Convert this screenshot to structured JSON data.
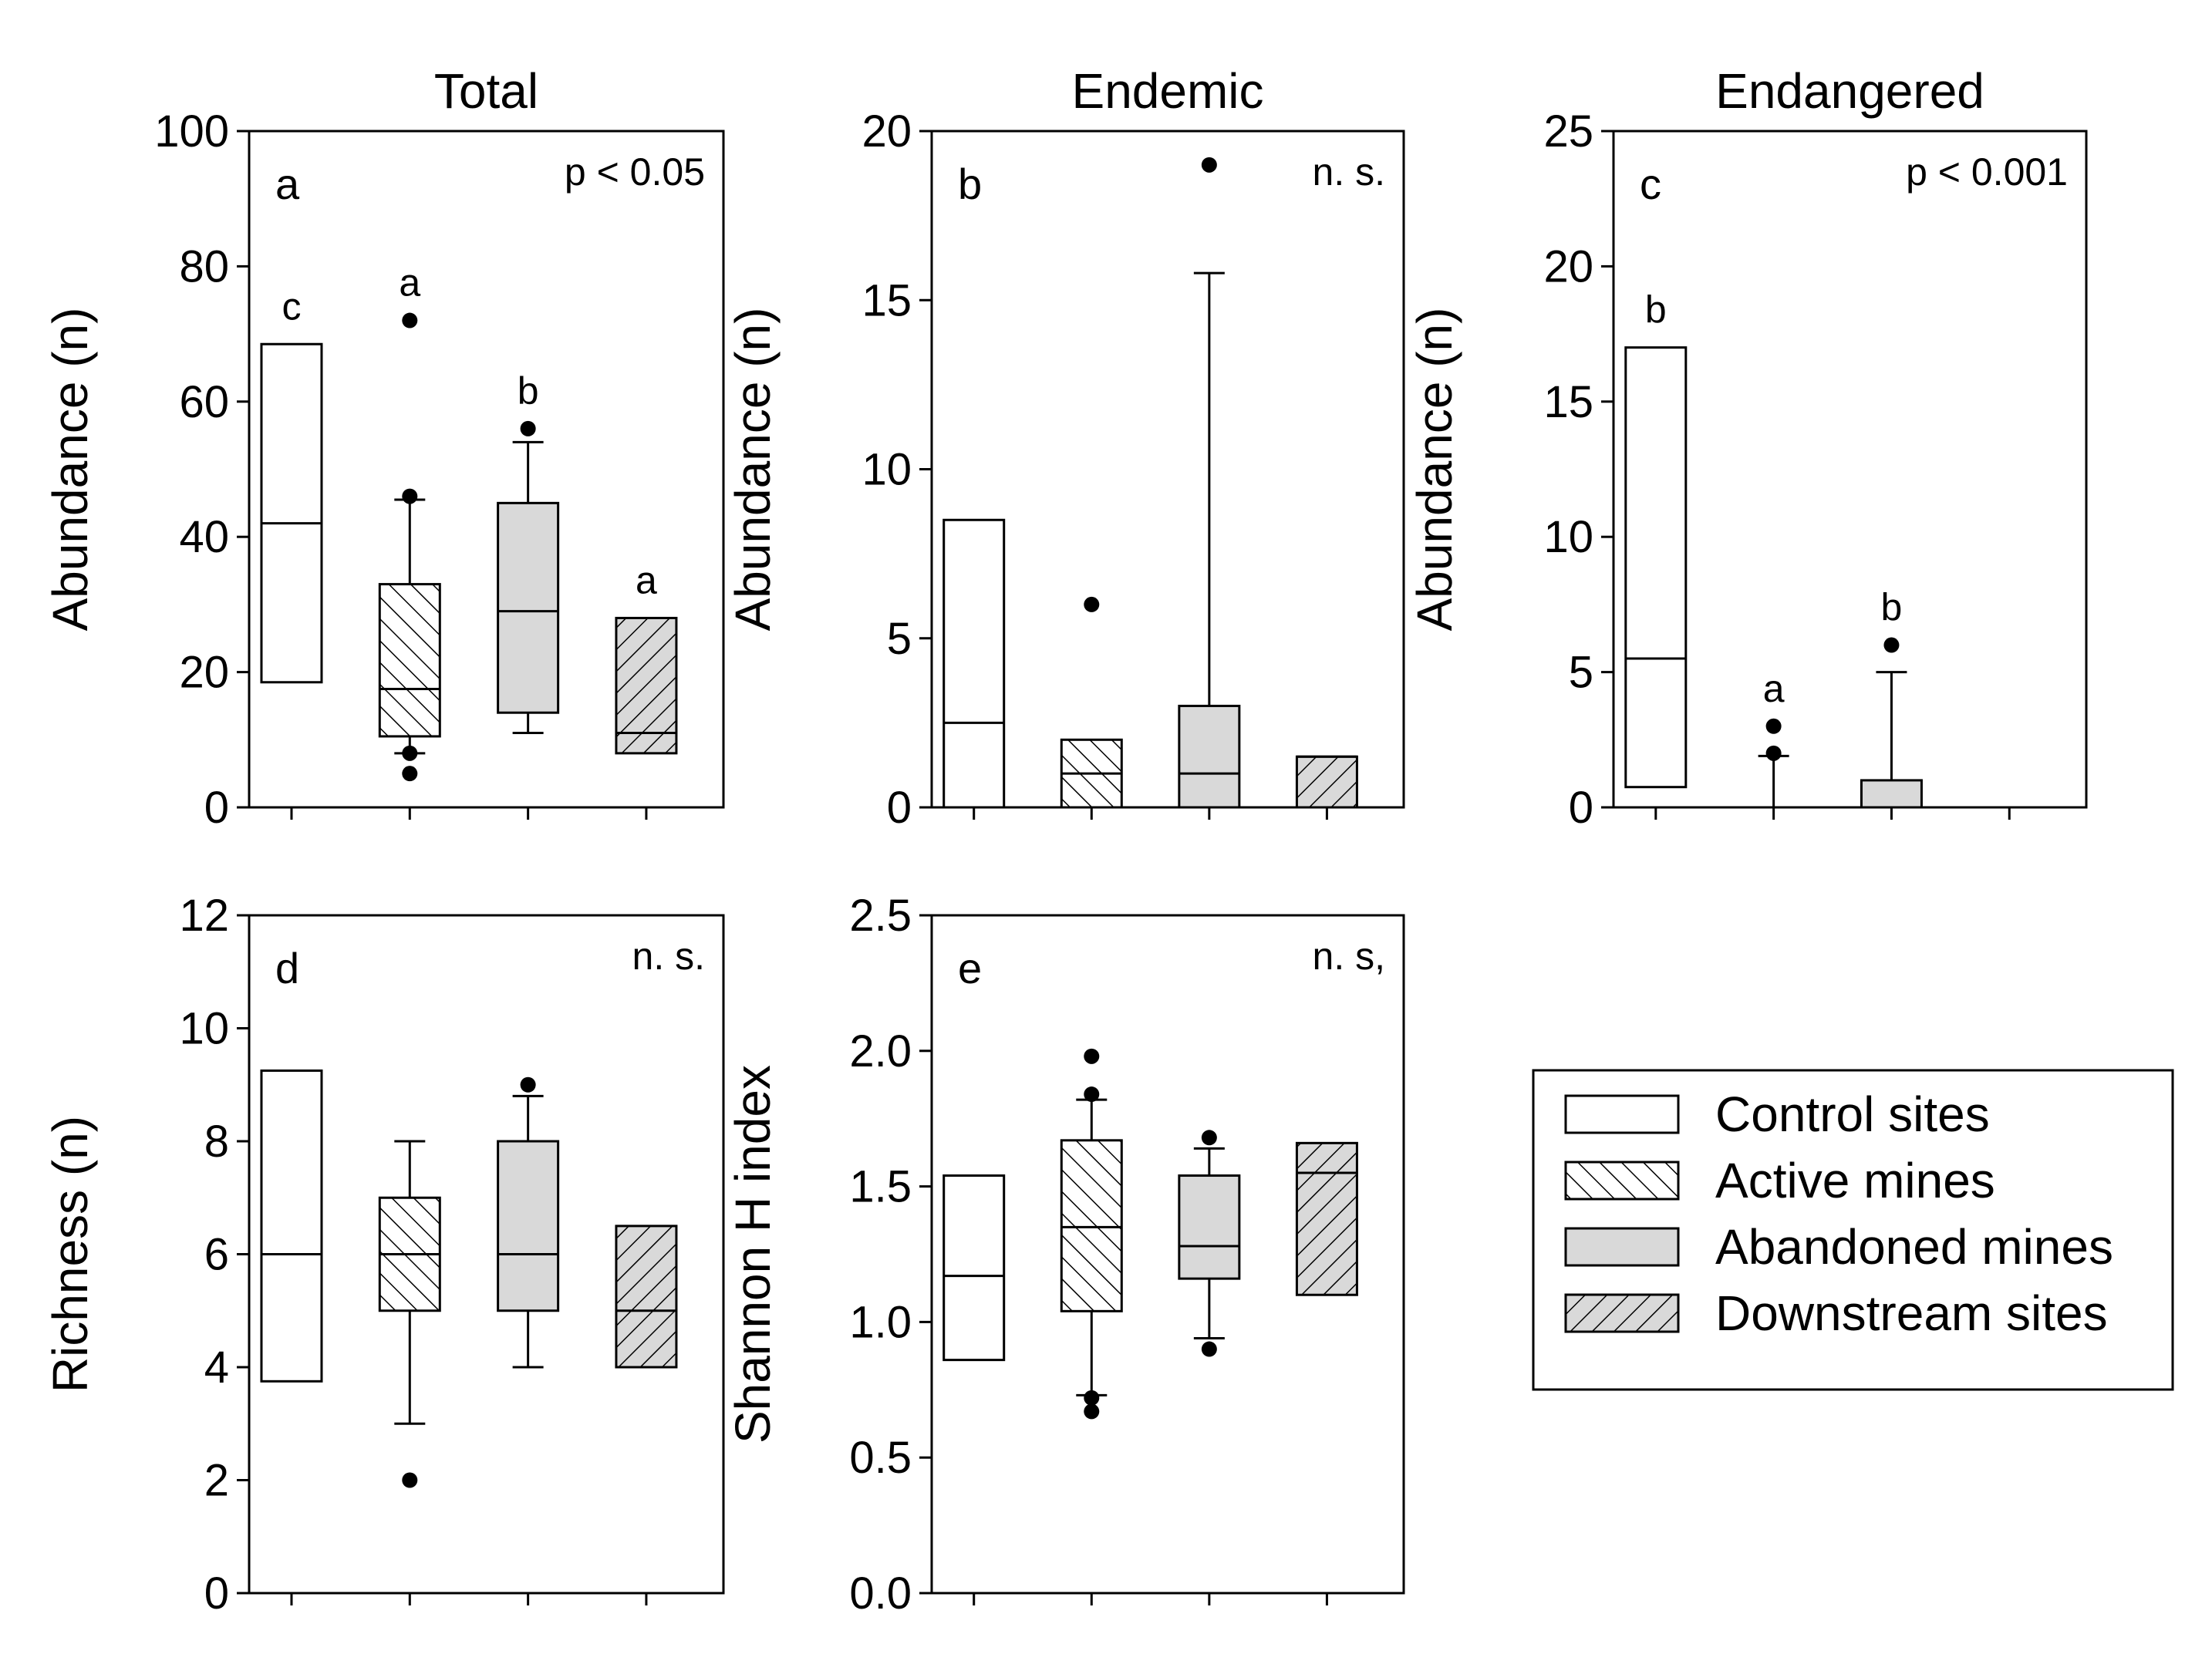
{
  "chart_data": [
    {
      "type": "boxplot",
      "id": "a",
      "title": "Total",
      "panel_letter": "a",
      "significance": "p < 0.05",
      "ylabel": "Abundance (n)",
      "ylim": [
        0,
        100
      ],
      "yticks": [
        0,
        20,
        40,
        60,
        80,
        100
      ],
      "ytick_labels": [
        "0",
        "20",
        "40",
        "60",
        "80",
        "100"
      ],
      "categories": [
        "Control sites",
        "Active mines",
        "Abandoned mines",
        "Downstream sites"
      ],
      "boxes": [
        {
          "group": "Control sites",
          "q1": 18.5,
          "median": 42,
          "q3": 68.5,
          "letter": "c"
        },
        {
          "group": "Active mines",
          "q1": 10.5,
          "median": 17.5,
          "q3": 33,
          "whisker_low": 8,
          "whisker_high": 45.5,
          "outliers": [
            5,
            8,
            46,
            72
          ],
          "letter": "a"
        },
        {
          "group": "Abandoned mines",
          "q1": 14,
          "median": 29,
          "q3": 45,
          "whisker_low": 11,
          "whisker_high": 54,
          "outliers": [
            56
          ],
          "letter": "b"
        },
        {
          "group": "Downstream sites",
          "q1": 8,
          "median": 11,
          "q3": 28,
          "letter": "a"
        }
      ]
    },
    {
      "type": "boxplot",
      "id": "b",
      "title": "Endemic",
      "panel_letter": "b",
      "significance": "n. s.",
      "ylabel": "Abundance (n)",
      "ylim": [
        0,
        20
      ],
      "yticks": [
        0,
        5,
        10,
        15,
        20
      ],
      "ytick_labels": [
        "0",
        "5",
        "10",
        "15",
        "20"
      ],
      "categories": [
        "Control sites",
        "Active mines",
        "Abandoned mines",
        "Downstream sites"
      ],
      "boxes": [
        {
          "group": "Control sites",
          "q1": 0,
          "median": 2.5,
          "q3": 8.5
        },
        {
          "group": "Active mines",
          "q1": 0,
          "median": 1,
          "q3": 2,
          "outliers": [
            6
          ]
        },
        {
          "group": "Abandoned mines",
          "q1": 0,
          "median": 1,
          "q3": 3,
          "whisker_high": 15.8,
          "outliers": [
            19
          ]
        },
        {
          "group": "Downstream sites",
          "q1": 0,
          "median": 1.5,
          "q3": 1.5
        }
      ]
    },
    {
      "type": "boxplot",
      "id": "c",
      "title": "Endangered",
      "panel_letter": "c",
      "significance": "p < 0.001",
      "ylabel": "Abundance (n)",
      "ylim": [
        0,
        25
      ],
      "yticks": [
        0,
        5,
        10,
        15,
        20,
        25
      ],
      "ytick_labels": [
        "0",
        "5",
        "10",
        "15",
        "20",
        "25"
      ],
      "categories": [
        "Control sites",
        "Active mines",
        "Abandoned mines",
        "Downstream sites"
      ],
      "boxes": [
        {
          "group": "Control sites",
          "q1": 0.75,
          "median": 5.5,
          "q3": 17,
          "letter": "b"
        },
        {
          "group": "Active mines",
          "q1": 0,
          "median": 0,
          "q3": 0,
          "whisker_high": 1.9,
          "outliers": [
            2,
            3
          ],
          "letter": "a"
        },
        {
          "group": "Abandoned mines",
          "q1": 0,
          "median": 0,
          "q3": 1,
          "whisker_high": 5,
          "outliers": [
            6
          ],
          "letter": "b"
        },
        {
          "group": "Downstream sites",
          "q1": 0,
          "median": 0,
          "q3": 0
        }
      ]
    },
    {
      "type": "boxplot",
      "id": "d",
      "title": "",
      "panel_letter": "d",
      "significance": "n. s.",
      "ylabel": "Richness (n)",
      "ylim": [
        0,
        12
      ],
      "yticks": [
        0,
        2,
        4,
        6,
        8,
        10,
        12
      ],
      "ytick_labels": [
        "0",
        "2",
        "4",
        "6",
        "8",
        "10",
        "12"
      ],
      "categories": [
        "Control sites",
        "Active mines",
        "Abandoned mines",
        "Downstream sites"
      ],
      "boxes": [
        {
          "group": "Control sites",
          "q1": 3.75,
          "median": 6,
          "q3": 9.25
        },
        {
          "group": "Active mines",
          "q1": 5,
          "median": 6,
          "q3": 7,
          "whisker_low": 3,
          "whisker_high": 8,
          "outliers": [
            2
          ]
        },
        {
          "group": "Abandoned mines",
          "q1": 5,
          "median": 6,
          "q3": 8,
          "whisker_low": 4,
          "whisker_high": 8.8,
          "outliers": [
            9
          ]
        },
        {
          "group": "Downstream sites",
          "q1": 4,
          "median": 5,
          "q3": 6.5
        }
      ]
    },
    {
      "type": "boxplot",
      "id": "e",
      "title": "",
      "panel_letter": "e",
      "significance": "n. s,",
      "ylabel": "Shannon H index",
      "ylim": [
        0,
        2.5
      ],
      "yticks": [
        0,
        0.5,
        1,
        1.5,
        2,
        2.5
      ],
      "ytick_labels": [
        "0.0",
        "0.5",
        "1.0",
        "1.5",
        "2.0",
        "2.5"
      ],
      "categories": [
        "Control sites",
        "Active mines",
        "Abandoned mines",
        "Downstream sites"
      ],
      "boxes": [
        {
          "group": "Control sites",
          "q1": 0.86,
          "median": 1.17,
          "q3": 1.54
        },
        {
          "group": "Active mines",
          "q1": 1.04,
          "median": 1.35,
          "q3": 1.67,
          "whisker_low": 0.73,
          "whisker_high": 1.82,
          "outliers": [
            0.67,
            0.72,
            1.84,
            1.98
          ]
        },
        {
          "group": "Abandoned mines",
          "q1": 1.16,
          "median": 1.28,
          "q3": 1.54,
          "whisker_low": 0.94,
          "whisker_high": 1.64,
          "outliers": [
            0.9,
            1.68
          ]
        },
        {
          "group": "Downstream sites",
          "q1": 1.1,
          "median": 1.55,
          "q3": 1.66
        }
      ]
    }
  ],
  "legend": {
    "position": "bottom-right",
    "items": [
      {
        "label": "Control sites",
        "fill": "white"
      },
      {
        "label": "Active mines",
        "fill": "hatch-forward"
      },
      {
        "label": "Abandoned mines",
        "fill": "gray"
      },
      {
        "label": "Downstream sites",
        "fill": "hatch-back-gray"
      }
    ]
  },
  "colors": {
    "box_gray": "#d9d9d9",
    "line": "#000000",
    "background": "#ffffff"
  }
}
